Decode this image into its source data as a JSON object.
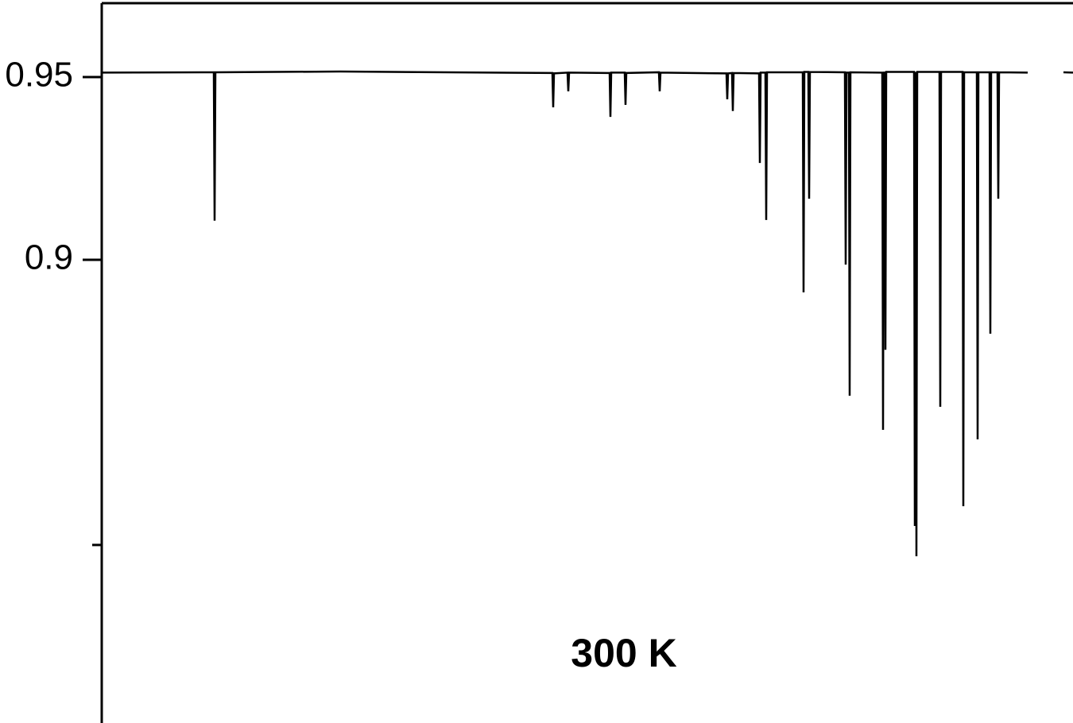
{
  "chart_data": {
    "type": "line",
    "annotation": "300 K",
    "xlim": [
      0,
      1222
    ],
    "ylim": [
      0.7733,
      0.9702
    ],
    "yticks": [
      0.95,
      0.9
    ],
    "minor_yticks": [
      0.822
    ],
    "series": [
      {
        "color": "#000000",
        "x": [
          0,
          141,
          142,
          143,
          300,
          567,
          568,
          569,
          586,
          587,
          588,
          639,
          640,
          641,
          658,
          659,
          660,
          701,
          702,
          703,
          786,
          787,
          788,
          793,
          794,
          795,
          827,
          828,
          829,
          835,
          836,
          837,
          882,
          883,
          884,
          889,
          890,
          891,
          935,
          936,
          937,
          940,
          941,
          942,
          982,
          983,
          984,
          985,
          986,
          987,
          1022,
          1023,
          1024,
          1025,
          1026,
          1054,
          1055,
          1056,
          1083,
          1084,
          1085,
          1101,
          1102,
          1103,
          1117,
          1118,
          1119,
          1127,
          1128,
          1129,
          1165,
          1188,
          1210,
          1222
        ],
        "values": [
          0.9512,
          0.9513,
          0.9107,
          0.9513,
          0.9515,
          0.9511,
          0.9417,
          0.951,
          0.9512,
          0.9461,
          0.9512,
          0.9511,
          0.9391,
          0.9512,
          0.9512,
          0.9424,
          0.9511,
          0.9513,
          0.9461,
          0.9512,
          0.951,
          0.9439,
          0.951,
          0.9511,
          0.9407,
          0.9511,
          0.951,
          0.9265,
          0.9512,
          0.9512,
          0.9109,
          0.9513,
          0.9513,
          0.8911,
          0.9514,
          0.9514,
          0.9167,
          0.9514,
          0.9513,
          0.8987,
          0.9512,
          0.9512,
          0.8628,
          0.9513,
          0.9512,
          0.8535,
          0.9512,
          0.9512,
          0.8754,
          0.9514,
          0.9514,
          0.8272,
          0.9514,
          0.8189,
          0.9514,
          0.9514,
          0.8598,
          0.9514,
          0.9514,
          0.8326,
          0.9513,
          0.9513,
          0.8509,
          0.9513,
          0.9513,
          0.8798,
          0.9513,
          0.9513,
          0.9167,
          0.9513,
          0.9512,
          null,
          0.9513,
          0.9512
        ]
      }
    ]
  }
}
